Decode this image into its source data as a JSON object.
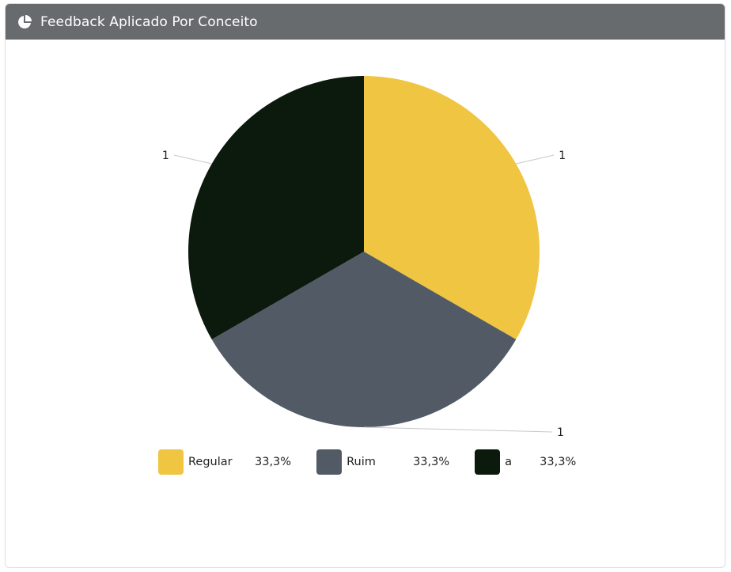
{
  "panel": {
    "title": "Feedback Aplicado Por Conceito",
    "icon": "pie-chart-icon"
  },
  "chart_data": {
    "type": "pie",
    "title": "",
    "slices": [
      {
        "label": "Regular",
        "value": 1,
        "percent": "33,3%",
        "color": "#efc542"
      },
      {
        "label": "Ruim",
        "value": 1,
        "percent": "33,3%",
        "color": "#525a66"
      },
      {
        "label": "a",
        "value": 1,
        "percent": "33,3%",
        "color": "#0c1a0e"
      }
    ],
    "data_labels": [
      "1",
      "1",
      "1"
    ],
    "legend_position": "bottom"
  }
}
